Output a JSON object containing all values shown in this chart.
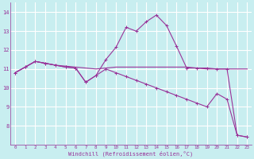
{
  "xlabel": "Windchill (Refroidissement éolien,°C)",
  "background_color": "#c8eef0",
  "line_color": "#993399",
  "grid_color": "#ffffff",
  "xlim_min": -0.5,
  "xlim_max": 23.4,
  "ylim_min": 7.0,
  "ylim_max": 14.5,
  "xticks": [
    0,
    1,
    2,
    3,
    4,
    5,
    6,
    7,
    8,
    9,
    10,
    11,
    12,
    13,
    14,
    15,
    16,
    17,
    18,
    19,
    20,
    21,
    22,
    23
  ],
  "yticks": [
    8,
    9,
    10,
    11,
    12,
    13,
    14
  ],
  "curve_flat_x": [
    0,
    1,
    2,
    3,
    4,
    5,
    6,
    7,
    8,
    9,
    10,
    11,
    12,
    13,
    14,
    15,
    16,
    17,
    18,
    19,
    20,
    21,
    22,
    23
  ],
  "curve_flat_y": [
    10.8,
    11.1,
    11.4,
    11.3,
    11.2,
    11.15,
    11.1,
    11.05,
    11.0,
    11.05,
    11.1,
    11.1,
    11.1,
    11.1,
    11.1,
    11.1,
    11.1,
    11.1,
    11.05,
    11.0,
    11.0,
    11.0,
    11.0,
    11.0
  ],
  "curve_peak_x": [
    0,
    1,
    2,
    3,
    4,
    5,
    6,
    7,
    8,
    9,
    10,
    11,
    12,
    13,
    14,
    15,
    16,
    17,
    18,
    19,
    20,
    21,
    22,
    23
  ],
  "curve_peak_y": [
    10.8,
    11.1,
    11.4,
    11.3,
    11.2,
    11.1,
    11.05,
    10.3,
    10.65,
    11.5,
    12.15,
    13.2,
    13.0,
    13.5,
    13.85,
    13.3,
    12.2,
    11.05,
    11.05,
    11.05,
    11.0,
    11.0,
    7.5,
    7.4
  ],
  "curve_diag_x": [
    0,
    1,
    2,
    3,
    4,
    5,
    6,
    7,
    8,
    9,
    10,
    11,
    12,
    13,
    14,
    15,
    16,
    17,
    18,
    19,
    20,
    21,
    22,
    23
  ],
  "curve_diag_y": [
    10.8,
    11.1,
    11.4,
    11.3,
    11.2,
    11.1,
    11.05,
    10.3,
    10.65,
    11.0,
    10.8,
    10.6,
    10.4,
    10.2,
    10.0,
    9.8,
    9.6,
    9.4,
    9.2,
    9.0,
    9.7,
    9.4,
    7.5,
    7.4
  ]
}
